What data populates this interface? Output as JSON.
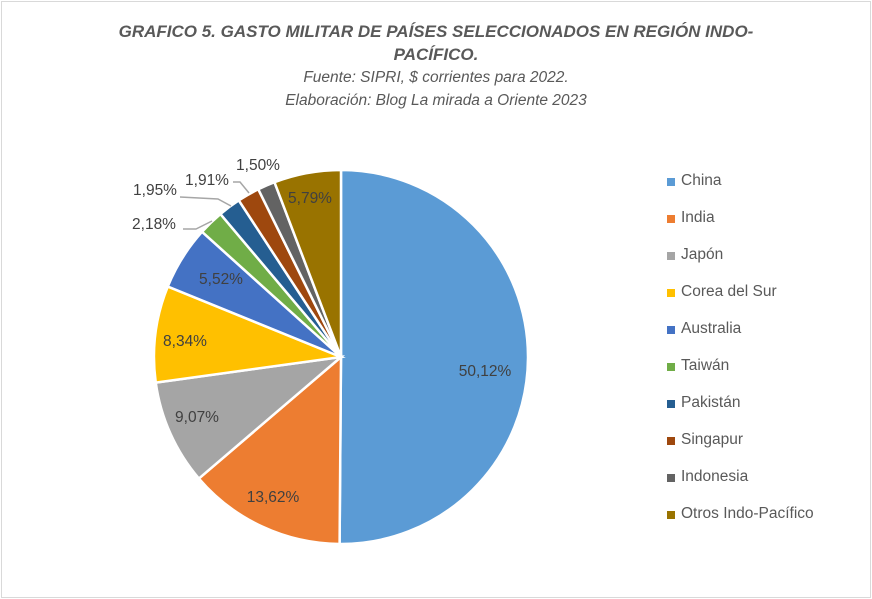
{
  "chart_data": {
    "type": "pie",
    "title": "GRAFICO 5. GASTO MILITAR DE PAÍSES SELECCIONADOS EN REGIÓN INDO-PACÍFICO.",
    "title_lines": [
      "GRAFICO 5. GASTO MILITAR DE PAÍSES SELECCIONADOS EN REGIÓN INDO-",
      "PACÍFICO."
    ],
    "subtitle_lines": [
      "Fuente: SIPRI, $ corrientes para 2022.",
      "Elaboración: Blog La mirada a Oriente 2023"
    ],
    "legend_position": "right",
    "slices": [
      {
        "name": "China",
        "value": 50.12,
        "label": "50,12%",
        "color": "#5B9BD5"
      },
      {
        "name": "India",
        "value": 13.62,
        "label": "13,62%",
        "color": "#ED7D31"
      },
      {
        "name": "Japón",
        "value": 9.07,
        "label": "9,07%",
        "color": "#A5A5A5"
      },
      {
        "name": "Corea del Sur",
        "value": 8.34,
        "label": "8,34%",
        "color": "#FFC000"
      },
      {
        "name": "Australia",
        "value": 5.52,
        "label": "5,52%",
        "color": "#4472C4"
      },
      {
        "name": "Taiwán",
        "value": 2.18,
        "label": "2,18%",
        "color": "#70AD47"
      },
      {
        "name": "Pakistán",
        "value": 1.95,
        "label": "1,95%",
        "color": "#255E91"
      },
      {
        "name": "Singapur",
        "value": 1.91,
        "label": "1,91%",
        "color": "#9E480E"
      },
      {
        "name": "Indonesia",
        "value": 1.5,
        "label": "1,50%",
        "color": "#636363"
      },
      {
        "name": "Otros Indo-Pacífico",
        "value": 5.79,
        "label": "5,79%",
        "color": "#997300"
      }
    ]
  }
}
